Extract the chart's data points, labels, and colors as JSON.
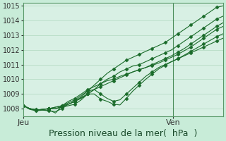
{
  "title": "",
  "xlabel": "Pression niveau de la mer(  hPa  )",
  "ylabel": "",
  "bg_color": "#c8ecd8",
  "plot_bg_color": "#d8f0e4",
  "line_color": "#1a6b2a",
  "grid_color": "#b0d8c0",
  "ylim": [
    1007.5,
    1015.2
  ],
  "xlim": [
    0,
    48
  ],
  "yticks": [
    1008,
    1009,
    1010,
    1011,
    1012,
    1013,
    1014,
    1015
  ],
  "xtick_positions": [
    0,
    36
  ],
  "xtick_labels": [
    "Jeu",
    "Ven"
  ],
  "vline_x": 36,
  "xlabel_fontsize": 9,
  "ytick_fontsize": 7,
  "xtick_fontsize": 8,
  "series": [
    [
      1008.2,
      1008.0,
      1007.9,
      1007.95,
      1008.0,
      1008.1,
      1008.2,
      1008.3,
      1008.5,
      1008.8,
      1009.2,
      1009.6,
      1010.0,
      1010.4,
      1010.7,
      1011.0,
      1011.3,
      1011.5,
      1011.7,
      1011.9,
      1012.1,
      1012.3,
      1012.5,
      1012.8,
      1013.1,
      1013.4,
      1013.7,
      1014.0,
      1014.3,
      1014.6,
      1014.9,
      1015.0
    ],
    [
      1008.2,
      1008.0,
      1007.9,
      1007.95,
      1008.0,
      1008.0,
      1008.1,
      1008.2,
      1008.3,
      1008.6,
      1009.0,
      1009.3,
      1009.7,
      1010.0,
      1010.2,
      1010.5,
      1010.7,
      1010.9,
      1011.0,
      1011.2,
      1011.4,
      1011.6,
      1011.8,
      1012.0,
      1012.3,
      1012.6,
      1012.9,
      1013.2,
      1013.5,
      1013.8,
      1014.1,
      1014.3
    ],
    [
      1008.2,
      1007.95,
      1007.85,
      1007.9,
      1007.9,
      1007.7,
      1008.2,
      1008.5,
      1008.7,
      1009.0,
      1009.3,
      1009.5,
      1009.7,
      1009.9,
      1010.0,
      1010.2,
      1010.35,
      1010.5,
      1010.65,
      1010.8,
      1010.95,
      1011.1,
      1011.3,
      1011.5,
      1011.7,
      1011.95,
      1012.2,
      1012.5,
      1012.8,
      1013.1,
      1013.4,
      1013.6
    ],
    [
      1008.2,
      1008.0,
      1007.9,
      1007.95,
      1008.0,
      1008.1,
      1008.2,
      1008.4,
      1008.6,
      1008.9,
      1009.2,
      1009.3,
      1009.0,
      1008.7,
      1008.5,
      1008.6,
      1009.0,
      1009.4,
      1009.8,
      1010.2,
      1010.5,
      1010.8,
      1011.0,
      1011.2,
      1011.4,
      1011.6,
      1011.8,
      1012.0,
      1012.2,
      1012.4,
      1012.6,
      1012.8
    ],
    [
      1008.2,
      1008.0,
      1007.9,
      1007.95,
      1008.0,
      1008.0,
      1008.15,
      1008.3,
      1008.5,
      1008.7,
      1009.0,
      1009.0,
      1008.65,
      1008.5,
      1008.3,
      1008.25,
      1008.7,
      1009.2,
      1009.6,
      1010.0,
      1010.35,
      1010.7,
      1010.95,
      1011.2,
      1011.4,
      1011.65,
      1011.9,
      1012.15,
      1012.4,
      1012.65,
      1012.9,
      1013.1
    ],
    [
      1008.2,
      1008.0,
      1007.95,
      1007.9,
      1007.85,
      1007.8,
      1008.0,
      1008.3,
      1008.5,
      1008.75,
      1009.0,
      1009.3,
      1009.5,
      1009.7,
      1009.9,
      1010.1,
      1010.3,
      1010.5,
      1010.65,
      1010.8,
      1011.0,
      1011.2,
      1011.4,
      1011.6,
      1011.85,
      1012.1,
      1012.4,
      1012.7,
      1013.0,
      1013.3,
      1013.6,
      1013.85
    ]
  ]
}
